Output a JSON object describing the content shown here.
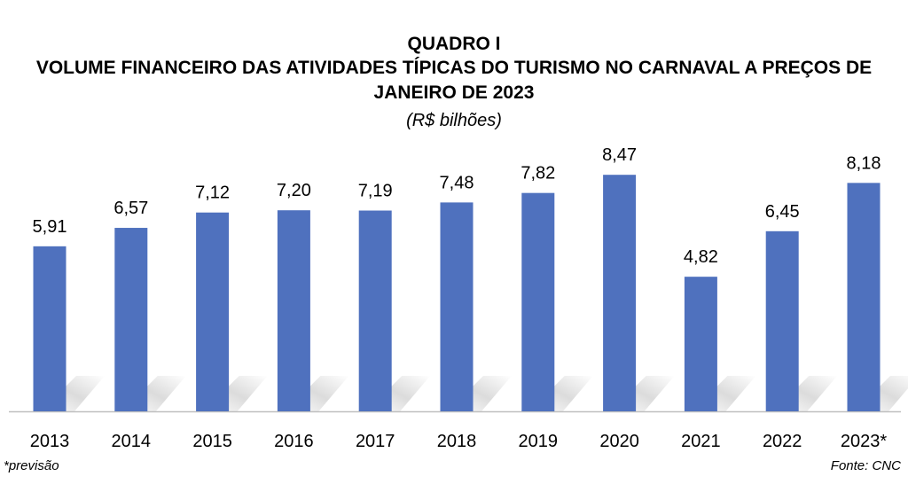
{
  "header": {
    "title": "QUADRO I",
    "subtitle": "VOLUME FINANCEIRO DAS ATIVIDADES TÍPICAS DO TURISMO NO CARNAVAL A PREÇOS DE JANEIRO DE 2023",
    "unit": "(R$ bilhões)"
  },
  "footer": {
    "note": "*previsão",
    "source": "Fonte: CNC"
  },
  "colors": {
    "bar": "#4F71BE",
    "axis": "#BFBFBF"
  },
  "chart_data": {
    "type": "bar",
    "title": "QUADRO I",
    "subtitle": "VOLUME FINANCEIRO DAS ATIVIDADES TÍPICAS DO TURISMO NO CARNAVAL A PREÇOS DE JANEIRO DE 2023",
    "ylabel": "(R$ bilhões)",
    "categories": [
      "2013",
      "2014",
      "2015",
      "2016",
      "2017",
      "2018",
      "2019",
      "2020",
      "2021",
      "2022",
      "2023*"
    ],
    "values": [
      5.91,
      6.57,
      7.12,
      7.2,
      7.19,
      7.48,
      7.82,
      8.47,
      4.82,
      6.45,
      8.18
    ],
    "labels": [
      "5,91",
      "6,57",
      "7,12",
      "7,20",
      "7,19",
      "7,48",
      "7,82",
      "8,47",
      "4,82",
      "6,45",
      "8,18"
    ],
    "grid": false,
    "legend": "none"
  }
}
